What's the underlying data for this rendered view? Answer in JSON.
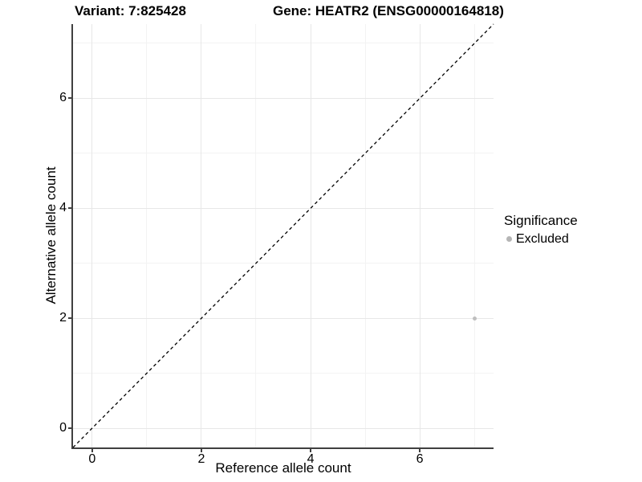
{
  "title": {
    "left": "Variant: 7:825428",
    "right": "Gene: HEATR2 (ENSG00000164818)"
  },
  "chart_data": {
    "type": "scatter",
    "title": "Variant: 7:825428    Gene: HEATR2 (ENSG00000164818)",
    "xlabel": "Reference allele count",
    "ylabel": "Alternative allele count",
    "xlim": [
      -0.35,
      7.35
    ],
    "ylim": [
      -0.35,
      7.35
    ],
    "xticks": [
      0,
      2,
      4,
      6
    ],
    "yticks": [
      0,
      2,
      4,
      6
    ],
    "minor_grid_x": [
      1,
      3,
      5,
      7
    ],
    "minor_grid_y": [
      1,
      3,
      5,
      7
    ],
    "grid": true,
    "series": [
      {
        "name": "Excluded",
        "color": "#bebebe",
        "point_size": 5,
        "points": [
          {
            "x": 7,
            "y": 2
          }
        ]
      }
    ],
    "reference_line": {
      "equation": "y = x",
      "style": "dashed",
      "color": "#000000",
      "from": [
        -0.35,
        -0.35
      ],
      "to": [
        7.35,
        7.35
      ]
    },
    "legend": {
      "title": "Significance",
      "position": "right",
      "entries": [
        {
          "label": "Excluded",
          "color": "#b5b5b5"
        }
      ]
    }
  },
  "colors": {
    "major_grid": "#e7e7e7",
    "minor_grid": "#f3f3f3",
    "axis_line": "#404040",
    "text": "#000000"
  }
}
